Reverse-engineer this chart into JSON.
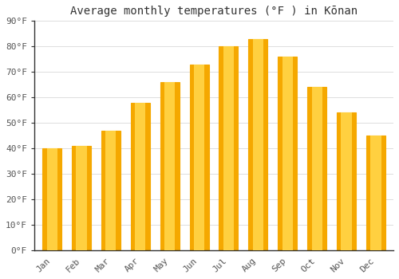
{
  "title": "Average monthly temperatures (°F ) in Kōnan",
  "months": [
    "Jan",
    "Feb",
    "Mar",
    "Apr",
    "May",
    "Jun",
    "Jul",
    "Aug",
    "Sep",
    "Oct",
    "Nov",
    "Dec"
  ],
  "values": [
    40,
    41,
    47,
    58,
    66,
    73,
    80,
    83,
    76,
    64,
    54,
    45
  ],
  "bar_color_center": "#FFD040",
  "bar_color_edge": "#F5A800",
  "ylim": [
    0,
    90
  ],
  "yticks": [
    0,
    10,
    20,
    30,
    40,
    50,
    60,
    70,
    80,
    90
  ],
  "ylabel_suffix": "°F",
  "bg_color": "#FFFFFF",
  "grid_color": "#DDDDDD",
  "title_fontsize": 10,
  "tick_fontsize": 8,
  "bar_width": 0.65
}
